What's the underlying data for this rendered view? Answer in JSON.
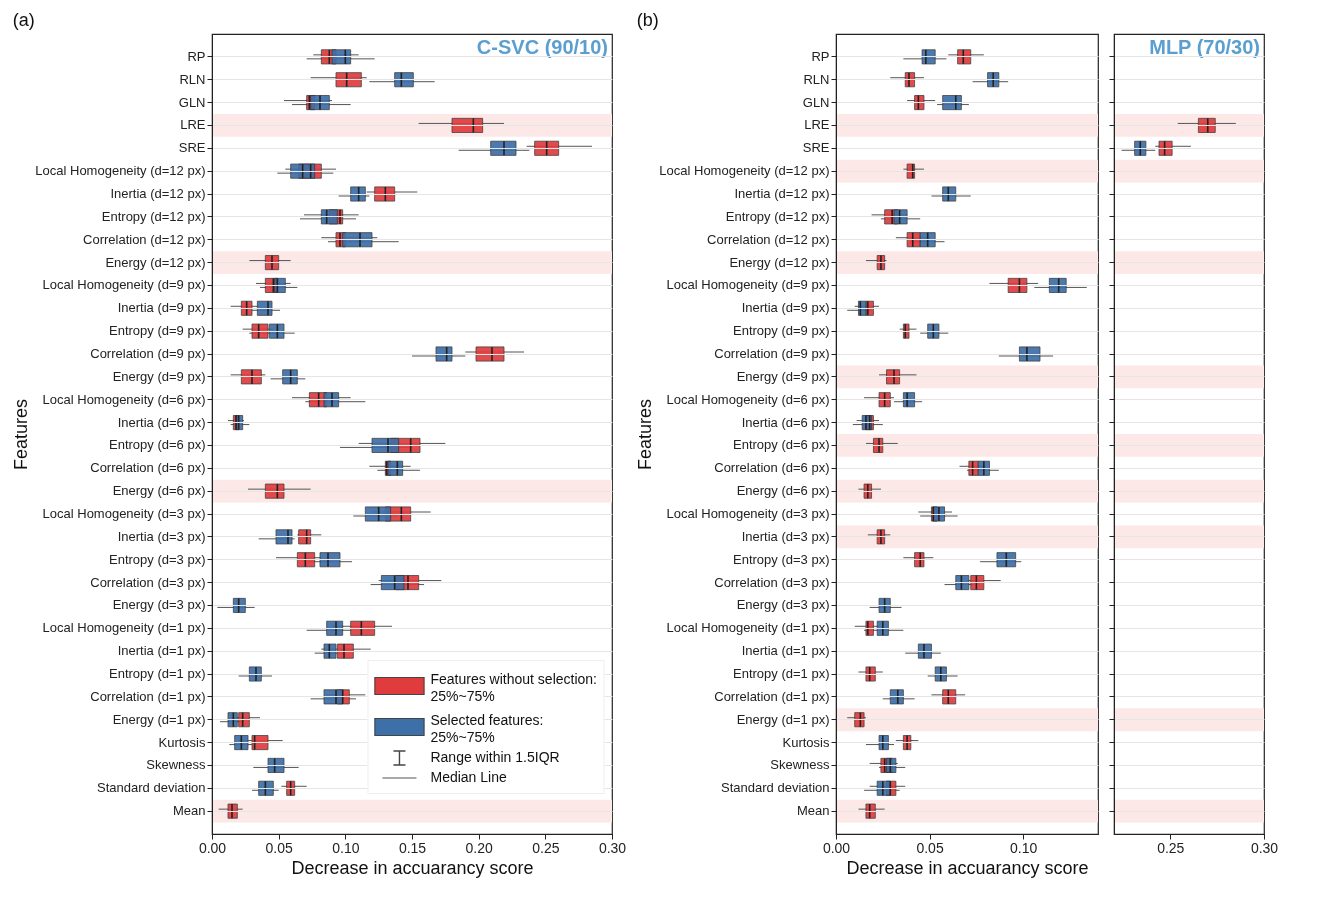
{
  "chart_data": [
    {
      "type": "box",
      "orientation": "horizontal",
      "title": "(a)",
      "xlabel": "Decrease in accuarancy score",
      "ylabel": "Features",
      "grid": "y",
      "legend": "bottom right",
      "categories": [
        "RP",
        "RLN",
        "GLN",
        "LRE",
        "SRE",
        "Local Homogeneity (d=12 px)",
        "Inertia (d=12 px)",
        "Entropy (d=12 px)",
        "Correlation (d=12 px)",
        "Energy (d=12 px)",
        "Local Homogeneity (d=9 px)",
        "Inertia (d=9 px)",
        "Entropy (d=9 px)",
        "Correlation (d=9 px)",
        "Energy (d=9 px)",
        "Local Homogeneity (d=6 px)",
        "Inertia (d=6 px)",
        "Entropy (d=6 px)",
        "Correlation (d=6 px)",
        "Energy (d=6 px)",
        "Local Homogeneity (d=3 px)",
        "Inertia (d=3 px)",
        "Entropy (d=3 px)",
        "Correlation (d=3 px)",
        "Energy (d=3 px)",
        "Local Homogeneity (d=1 px)",
        "Inertia (d=1 px)",
        "Entropy (d=1 px)",
        "Correlation (d=1 px)",
        "Energy (d=1 px)",
        "Kurtosis",
        "Skewness",
        "Standard deviation",
        "Mean"
      ],
      "xlim": [
        0,
        0.3
      ],
      "xticks": [
        {
          "value": 0,
          "label": "0.00"
        },
        {
          "value": 0.05,
          "label": "0.05"
        },
        {
          "value": 0.1,
          "label": "0.10"
        },
        {
          "value": 0.15,
          "label": "0.15"
        },
        {
          "value": 0.2,
          "label": "0.20"
        },
        {
          "value": 0.25,
          "label": "0.25"
        },
        {
          "value": 0.3,
          "label": "0.30"
        }
      ],
      "series": [
        {
          "name": "Features without selection:",
          "color": "#e03c3e",
          "boxes": [
            {
              "low": 0.076,
              "q1": 0.082,
              "median": 0.088,
              "q3": 0.093,
              "high": 0.11
            },
            {
              "low": 0.074,
              "q1": 0.093,
              "median": 0.101,
              "q3": 0.112,
              "high": 0.116
            },
            {
              "low": 0.054,
              "q1": 0.071,
              "median": 0.073,
              "q3": 0.077,
              "high": 0.09
            },
            {
              "low": 0.155,
              "q1": 0.18,
              "median": 0.196,
              "q3": 0.203,
              "high": 0.219
            },
            {
              "low": 0.236,
              "q1": 0.242,
              "median": 0.251,
              "q3": 0.26,
              "high": 0.285
            },
            {
              "low": 0.055,
              "q1": 0.065,
              "median": 0.074,
              "q3": 0.082,
              "high": 0.093
            },
            {
              "low": 0.116,
              "q1": 0.122,
              "median": 0.13,
              "q3": 0.137,
              "high": 0.154
            },
            {
              "low": 0.069,
              "q1": 0.088,
              "median": 0.096,
              "q3": 0.098,
              "high": 0.11
            },
            {
              "low": 0.082,
              "q1": 0.093,
              "median": 0.096,
              "q3": 0.1,
              "high": 0.124
            },
            {
              "low": 0.028,
              "q1": 0.04,
              "median": 0.045,
              "q3": 0.05,
              "high": 0.059
            },
            {
              "low": 0.033,
              "q1": 0.04,
              "median": 0.046,
              "q3": 0.049,
              "high": 0.059
            },
            {
              "low": 0.014,
              "q1": 0.022,
              "median": 0.026,
              "q3": 0.03,
              "high": 0.035
            },
            {
              "low": 0.023,
              "q1": 0.03,
              "median": 0.035,
              "q3": 0.042,
              "high": 0.046
            },
            {
              "low": 0.19,
              "q1": 0.198,
              "median": 0.21,
              "q3": 0.219,
              "high": 0.234
            },
            {
              "low": 0.014,
              "q1": 0.022,
              "median": 0.03,
              "q3": 0.037,
              "high": 0.04
            },
            {
              "low": 0.06,
              "q1": 0.073,
              "median": 0.08,
              "q3": 0.086,
              "high": 0.104
            },
            {
              "low": 0.012,
              "q1": 0.016,
              "median": 0.018,
              "q3": 0.02,
              "high": 0.024
            },
            {
              "low": 0.11,
              "q1": 0.134,
              "median": 0.149,
              "q3": 0.156,
              "high": 0.175
            },
            {
              "low": 0.118,
              "q1": 0.13,
              "median": 0.131,
              "q3": 0.134,
              "high": 0.149
            },
            {
              "low": 0.027,
              "q1": 0.04,
              "median": 0.049,
              "q3": 0.054,
              "high": 0.074
            },
            {
              "low": 0.12,
              "q1": 0.13,
              "median": 0.142,
              "q3": 0.149,
              "high": 0.164
            },
            {
              "low": 0.064,
              "q1": 0.065,
              "median": 0.071,
              "q3": 0.074,
              "high": 0.082
            },
            {
              "low": 0.048,
              "q1": 0.064,
              "median": 0.07,
              "q3": 0.077,
              "high": 0.082
            },
            {
              "low": 0.125,
              "q1": 0.138,
              "median": 0.147,
              "q3": 0.155,
              "high": 0.172
            },
            null,
            {
              "low": 0.09,
              "q1": 0.104,
              "median": 0.112,
              "q3": 0.122,
              "high": 0.135
            },
            {
              "low": 0.082,
              "q1": 0.094,
              "median": 0.099,
              "q3": 0.106,
              "high": 0.119
            },
            null,
            {
              "low": 0.085,
              "q1": 0.094,
              "median": 0.098,
              "q3": 0.103,
              "high": 0.115
            },
            {
              "low": 0.014,
              "q1": 0.02,
              "median": 0.023,
              "q3": 0.028,
              "high": 0.036
            },
            {
              "low": 0.02,
              "q1": 0.03,
              "median": 0.032,
              "q3": 0.042,
              "high": 0.053
            },
            null,
            {
              "low": 0.052,
              "q1": 0.056,
              "median": 0.059,
              "q3": 0.062,
              "high": 0.071
            },
            {
              "low": 0.005,
              "q1": 0.012,
              "median": 0.015,
              "q3": 0.019,
              "high": 0.023
            }
          ]
        },
        {
          "name": "Selected features:",
          "color": "#3d6fa8",
          "boxes": [
            {
              "low": 0.071,
              "q1": 0.09,
              "median": 0.1,
              "q3": 0.104,
              "high": 0.122
            },
            {
              "low": 0.118,
              "q1": 0.137,
              "median": 0.142,
              "q3": 0.151,
              "high": 0.167
            },
            {
              "low": 0.06,
              "q1": 0.074,
              "median": 0.081,
              "q3": 0.088,
              "high": 0.104
            },
            null,
            {
              "low": 0.185,
              "q1": 0.209,
              "median": 0.219,
              "q3": 0.228,
              "high": 0.238
            },
            {
              "low": 0.049,
              "q1": 0.059,
              "median": 0.068,
              "q3": 0.077,
              "high": 0.091
            },
            {
              "low": 0.095,
              "q1": 0.104,
              "median": 0.11,
              "q3": 0.115,
              "high": 0.118
            },
            {
              "low": 0.066,
              "q1": 0.082,
              "median": 0.086,
              "q3": 0.094,
              "high": 0.108
            },
            {
              "low": 0.087,
              "q1": 0.098,
              "median": 0.111,
              "q3": 0.12,
              "high": 0.14
            },
            null,
            {
              "low": 0.036,
              "q1": 0.047,
              "median": 0.049,
              "q3": 0.055,
              "high": 0.064
            },
            {
              "low": 0.03,
              "q1": 0.034,
              "median": 0.042,
              "q3": 0.045,
              "high": 0.051
            },
            {
              "low": 0.028,
              "q1": 0.043,
              "median": 0.049,
              "q3": 0.054,
              "high": 0.062
            },
            {
              "low": 0.15,
              "q1": 0.168,
              "median": 0.176,
              "q3": 0.18,
              "high": 0.19
            },
            {
              "low": 0.044,
              "q1": 0.053,
              "median": 0.059,
              "q3": 0.064,
              "high": 0.07
            },
            {
              "low": 0.07,
              "q1": 0.084,
              "median": 0.09,
              "q3": 0.095,
              "high": 0.115
            },
            {
              "low": 0.014,
              "q1": 0.018,
              "median": 0.02,
              "q3": 0.023,
              "high": 0.028
            },
            {
              "low": 0.096,
              "q1": 0.12,
              "median": 0.132,
              "q3": 0.14,
              "high": 0.15
            },
            {
              "low": 0.124,
              "q1": 0.132,
              "median": 0.139,
              "q3": 0.143,
              "high": 0.156
            },
            null,
            {
              "low": 0.106,
              "q1": 0.115,
              "median": 0.125,
              "q3": 0.134,
              "high": 0.14
            },
            {
              "low": 0.035,
              "q1": 0.048,
              "median": 0.057,
              "q3": 0.06,
              "high": 0.062
            },
            {
              "low": 0.072,
              "q1": 0.081,
              "median": 0.087,
              "q3": 0.096,
              "high": 0.105
            },
            {
              "low": 0.119,
              "q1": 0.127,
              "median": 0.137,
              "q3": 0.144,
              "high": 0.159
            },
            {
              "low": 0.004,
              "q1": 0.016,
              "median": 0.02,
              "q3": 0.025,
              "high": 0.032
            },
            {
              "low": 0.071,
              "q1": 0.086,
              "median": 0.093,
              "q3": 0.098,
              "high": 0.105
            },
            {
              "low": 0.077,
              "q1": 0.084,
              "median": 0.088,
              "q3": 0.093,
              "high": 0.1
            },
            {
              "low": 0.02,
              "q1": 0.028,
              "median": 0.033,
              "q3": 0.037,
              "high": 0.045
            },
            {
              "low": 0.074,
              "q1": 0.084,
              "median": 0.093,
              "q3": 0.098,
              "high": 0.108
            },
            {
              "low": 0.006,
              "q1": 0.012,
              "median": 0.016,
              "q3": 0.019,
              "high": 0.024
            },
            {
              "low": 0.013,
              "q1": 0.017,
              "median": 0.022,
              "q3": 0.027,
              "high": 0.03
            },
            {
              "low": 0.031,
              "q1": 0.042,
              "median": 0.047,
              "q3": 0.054,
              "high": 0.065
            },
            {
              "low": 0.03,
              "q1": 0.035,
              "median": 0.04,
              "q3": 0.046,
              "high": 0.05
            },
            null
          ]
        }
      ],
      "bands": [
        {
          "axis": "y",
          "from": "LRE",
          "to": "LRE",
          "color": "#fde8e8"
        },
        {
          "axis": "y",
          "from": "Energy (d=12 px)",
          "to": "Energy (d=12 px)",
          "color": "#fde8e8"
        },
        {
          "axis": "y",
          "from": "Energy (d=6 px)",
          "to": "Energy (d=6 px)",
          "color": "#fde8e8"
        },
        {
          "axis": "y",
          "from": "Mean",
          "to": "Mean",
          "color": "#fde8e8"
        }
      ],
      "annotations": [
        "C-SVC (90/10)",
        "25%~75%",
        "25%~75%",
        "Range within 1.5IQR",
        "Median Line"
      ]
    },
    {
      "type": "box",
      "orientation": "horizontal",
      "title": "(b)",
      "xlabel": "Decrease in accuarancy score",
      "ylabel": "Features",
      "grid": "y",
      "categories": [
        "RP",
        "RLN",
        "GLN",
        "LRE",
        "SRE",
        "Local Homogeneity (d=12 px)",
        "Inertia (d=12 px)",
        "Entropy (d=12 px)",
        "Correlation (d=12 px)",
        "Energy (d=12 px)",
        "Local Homogeneity (d=9 px)",
        "Inertia (d=9 px)",
        "Entropy (d=9 px)",
        "Correlation (d=9 px)",
        "Energy (d=9 px)",
        "Local Homogeneity (d=6 px)",
        "Inertia (d=6 px)",
        "Entropy (d=6 px)",
        "Correlation (d=6 px)",
        "Energy (d=6 px)",
        "Local Homogeneity (d=3 px)",
        "Inertia (d=3 px)",
        "Entropy (d=3 px)",
        "Correlation (d=3 px)",
        "Energy (d=3 px)",
        "Local Homogeneity (d=1 px)",
        "Inertia (d=1 px)",
        "Entropy (d=1 px)",
        "Correlation (d=1 px)",
        "Energy (d=1 px)",
        "Kurtosis",
        "Skewness",
        "Standard deviation",
        "Mean"
      ],
      "xlim": [
        0,
        0.14
      ],
      "xticks": [
        {
          "value": 0,
          "label": "0.00"
        },
        {
          "value": 0.05,
          "label": "0.05"
        },
        {
          "value": 0.1,
          "label": "0.10"
        }
      ],
      "series": [
        {
          "color": "#e03c3e",
          "boxes": [
            {
              "low": 0.06,
              "q1": 0.065,
              "median": 0.068,
              "q3": 0.072,
              "high": 0.079
            },
            {
              "low": 0.029,
              "q1": 0.037,
              "median": 0.039,
              "q3": 0.042,
              "high": 0.047
            },
            {
              "low": 0.038,
              "q1": 0.042,
              "median": 0.044,
              "q3": 0.047,
              "high": 0.053
            },
            null,
            null,
            {
              "low": 0.036,
              "q1": 0.038,
              "median": 0.041,
              "q3": 0.042,
              "high": 0.047
            },
            null,
            {
              "low": 0.019,
              "q1": 0.026,
              "median": 0.03,
              "q3": 0.033,
              "high": 0.038
            },
            {
              "low": 0.032,
              "q1": 0.038,
              "median": 0.041,
              "q3": 0.045,
              "high": 0.05
            },
            {
              "low": 0.016,
              "q1": 0.022,
              "median": 0.024,
              "q3": 0.026,
              "high": 0.027
            },
            {
              "low": 0.082,
              "q1": 0.092,
              "median": 0.098,
              "q3": 0.102,
              "high": 0.108
            },
            {
              "low": 0.01,
              "q1": 0.016,
              "median": 0.017,
              "q3": 0.02,
              "high": 0.023
            },
            {
              "low": 0.034,
              "q1": 0.036,
              "median": 0.037,
              "q3": 0.039,
              "high": 0.043
            },
            null,
            {
              "low": 0.023,
              "q1": 0.027,
              "median": 0.031,
              "q3": 0.034,
              "high": 0.043
            },
            {
              "low": 0.015,
              "q1": 0.023,
              "median": 0.026,
              "q3": 0.029,
              "high": 0.031
            },
            {
              "low": 0.011,
              "q1": 0.016,
              "median": 0.018,
              "q3": 0.02,
              "high": 0.023
            },
            {
              "low": 0.016,
              "q1": 0.02,
              "median": 0.023,
              "q3": 0.025,
              "high": 0.033
            },
            {
              "low": 0.066,
              "q1": 0.071,
              "median": 0.073,
              "q3": 0.076,
              "high": 0.08
            },
            {
              "low": 0.012,
              "q1": 0.015,
              "median": 0.017,
              "q3": 0.019,
              "high": 0.024
            },
            {
              "low": 0.044,
              "q1": 0.051,
              "median": 0.052,
              "q3": 0.054,
              "high": 0.062
            },
            {
              "low": 0.017,
              "q1": 0.022,
              "median": 0.024,
              "q3": 0.026,
              "high": 0.029
            },
            {
              "low": 0.036,
              "q1": 0.042,
              "median": 0.045,
              "q3": 0.047,
              "high": 0.052
            },
            {
              "low": 0.07,
              "q1": 0.072,
              "median": 0.075,
              "q3": 0.079,
              "high": 0.088
            },
            null,
            {
              "low": 0.01,
              "q1": 0.016,
              "median": 0.017,
              "q3": 0.02,
              "high": 0.023
            },
            null,
            {
              "low": 0.012,
              "q1": 0.016,
              "median": 0.018,
              "q3": 0.021,
              "high": 0.025
            },
            {
              "low": 0.051,
              "q1": 0.057,
              "median": 0.06,
              "q3": 0.064,
              "high": 0.069
            },
            {
              "low": 0.006,
              "q1": 0.01,
              "median": 0.013,
              "q3": 0.015,
              "high": 0.016
            },
            {
              "low": 0.032,
              "q1": 0.036,
              "median": 0.038,
              "q3": 0.04,
              "high": 0.044
            },
            {
              "low": 0.018,
              "q1": 0.024,
              "median": 0.026,
              "q3": 0.03,
              "high": 0.033
            },
            {
              "low": 0.018,
              "q1": 0.027,
              "median": 0.029,
              "q3": 0.032,
              "high": 0.037
            },
            {
              "low": 0.012,
              "q1": 0.016,
              "median": 0.018,
              "q3": 0.021,
              "high": 0.026
            }
          ]
        },
        {
          "color": "#3d6fa8",
          "boxes": [
            {
              "low": 0.036,
              "q1": 0.046,
              "median": 0.048,
              "q3": 0.053,
              "high": 0.059
            },
            {
              "low": 0.073,
              "q1": 0.081,
              "median": 0.084,
              "q3": 0.087,
              "high": 0.092
            },
            {
              "low": 0.054,
              "q1": 0.057,
              "median": 0.064,
              "q3": 0.067,
              "high": 0.071
            },
            null,
            null,
            null,
            {
              "low": 0.051,
              "q1": 0.057,
              "median": 0.06,
              "q3": 0.064,
              "high": 0.072
            },
            {
              "low": 0.024,
              "q1": 0.031,
              "median": 0.034,
              "q3": 0.038,
              "high": 0.045
            },
            {
              "low": 0.04,
              "q1": 0.045,
              "median": 0.049,
              "q3": 0.053,
              "high": 0.058
            },
            null,
            {
              "low": 0.106,
              "q1": 0.114,
              "median": 0.119,
              "q3": 0.123,
              "high": 0.134
            },
            {
              "low": 0.006,
              "q1": 0.012,
              "median": 0.013,
              "q3": 0.016,
              "high": 0.019
            },
            {
              "low": 0.045,
              "q1": 0.049,
              "median": 0.052,
              "q3": 0.055,
              "high": 0.06
            },
            {
              "low": 0.087,
              "q1": 0.098,
              "median": 0.102,
              "q3": 0.109,
              "high": 0.116
            },
            null,
            {
              "low": 0.031,
              "q1": 0.036,
              "median": 0.038,
              "q3": 0.042,
              "high": 0.046
            },
            {
              "low": 0.009,
              "q1": 0.014,
              "median": 0.016,
              "q3": 0.019,
              "high": 0.025
            },
            null,
            {
              "low": 0.07,
              "q1": 0.076,
              "median": 0.079,
              "q3": 0.082,
              "high": 0.087
            },
            null,
            {
              "low": 0.045,
              "q1": 0.052,
              "median": 0.055,
              "q3": 0.058,
              "high": 0.065
            },
            null,
            {
              "low": 0.077,
              "q1": 0.086,
              "median": 0.091,
              "q3": 0.096,
              "high": 0.099
            },
            {
              "low": 0.058,
              "q1": 0.064,
              "median": 0.067,
              "q3": 0.071,
              "high": 0.074
            },
            {
              "low": 0.018,
              "q1": 0.023,
              "median": 0.026,
              "q3": 0.029,
              "high": 0.035
            },
            {
              "low": 0.015,
              "q1": 0.022,
              "median": 0.025,
              "q3": 0.028,
              "high": 0.036
            },
            {
              "low": 0.037,
              "q1": 0.044,
              "median": 0.047,
              "q3": 0.051,
              "high": 0.056
            },
            {
              "low": 0.049,
              "q1": 0.053,
              "median": 0.056,
              "q3": 0.059,
              "high": 0.065
            },
            {
              "low": 0.025,
              "q1": 0.029,
              "median": 0.033,
              "q3": 0.036,
              "high": 0.042
            },
            null,
            {
              "low": 0.016,
              "q1": 0.023,
              "median": 0.025,
              "q3": 0.028,
              "high": 0.031
            },
            {
              "low": 0.023,
              "q1": 0.027,
              "median": 0.029,
              "q3": 0.032,
              "high": 0.037
            },
            {
              "low": 0.015,
              "q1": 0.022,
              "median": 0.025,
              "q3": 0.029,
              "high": 0.034
            },
            null
          ]
        }
      ],
      "bands": [
        {
          "axis": "y",
          "from": "LRE",
          "to": "LRE",
          "color": "#fde8e8"
        },
        {
          "axis": "y",
          "from": "Local Homogeneity (d=12 px)",
          "to": "Local Homogeneity (d=12 px)",
          "color": "#fde8e8"
        },
        {
          "axis": "y",
          "from": "Energy (d=12 px)",
          "to": "Energy (d=12 px)",
          "color": "#fde8e8"
        },
        {
          "axis": "y",
          "from": "Energy (d=9 px)",
          "to": "Energy (d=9 px)",
          "color": "#fde8e8"
        },
        {
          "axis": "y",
          "from": "Entropy (d=6 px)",
          "to": "Entropy (d=6 px)",
          "color": "#fde8e8"
        },
        {
          "axis": "y",
          "from": "Energy (d=6 px)",
          "to": "Energy (d=6 px)",
          "color": "#fde8e8"
        },
        {
          "axis": "y",
          "from": "Inertia (d=3 px)",
          "to": "Inertia (d=3 px)",
          "color": "#fde8e8"
        },
        {
          "axis": "y",
          "from": "Energy (d=1 px)",
          "to": "Energy (d=1 px)",
          "color": "#fde8e8"
        },
        {
          "axis": "y",
          "from": "Mean",
          "to": "Mean",
          "color": "#fde8e8"
        }
      ]
    },
    {
      "type": "box",
      "orientation": "horizontal",
      "grid": "y",
      "tick_labels": "x",
      "categories": [
        "RP",
        "RLN",
        "GLN",
        "LRE",
        "SRE",
        "Local Homogeneity (d=12 px)",
        "Inertia (d=12 px)",
        "Entropy (d=12 px)",
        "Correlation (d=12 px)",
        "Energy (d=12 px)",
        "Local Homogeneity (d=9 px)",
        "Inertia (d=9 px)",
        "Entropy (d=9 px)",
        "Correlation (d=9 px)",
        "Energy (d=9 px)",
        "Local Homogeneity (d=6 px)",
        "Inertia (d=6 px)",
        "Entropy (d=6 px)",
        "Correlation (d=6 px)",
        "Energy (d=6 px)",
        "Local Homogeneity (d=3 px)",
        "Inertia (d=3 px)",
        "Entropy (d=3 px)",
        "Correlation (d=3 px)",
        "Energy (d=3 px)",
        "Local Homogeneity (d=1 px)",
        "Inertia (d=1 px)",
        "Entropy (d=1 px)",
        "Correlation (d=1 px)",
        "Energy (d=1 px)",
        "Kurtosis",
        "Skewness",
        "Standard deviation",
        "Mean"
      ],
      "xlim": [
        0.22,
        0.3
      ],
      "xticks": [
        {
          "value": 0.25,
          "label": "0.25"
        },
        {
          "value": 0.3,
          "label": "0.30"
        }
      ],
      "series": [
        {
          "color": "#e03c3e",
          "boxes": [
            null,
            null,
            null,
            {
              "low": 0.254,
              "q1": 0.265,
              "median": 0.27,
              "q3": 0.274,
              "high": 0.285
            },
            {
              "low": 0.242,
              "q1": 0.244,
              "median": 0.247,
              "q3": 0.251,
              "high": 0.261
            },
            null,
            null,
            null,
            null,
            null,
            null,
            null,
            null,
            null,
            null,
            null,
            null,
            null,
            null,
            null,
            null,
            null,
            null,
            null,
            null,
            null,
            null,
            null,
            null,
            null,
            null,
            null,
            null,
            null
          ]
        },
        {
          "color": "#3d6fa8",
          "boxes": [
            null,
            null,
            null,
            null,
            {
              "low": 0.224,
              "q1": 0.231,
              "median": 0.234,
              "q3": 0.237,
              "high": 0.242
            },
            null,
            null,
            null,
            null,
            null,
            null,
            null,
            null,
            null,
            null,
            null,
            null,
            null,
            null,
            null,
            null,
            null,
            null,
            null,
            null,
            null,
            null,
            null,
            null,
            null,
            null,
            null,
            null,
            null
          ]
        }
      ],
      "bands": [
        {
          "axis": "y",
          "from": "LRE",
          "to": "LRE",
          "color": "#fde8e8"
        },
        {
          "axis": "y",
          "from": "Local Homogeneity (d=12 px)",
          "to": "Local Homogeneity (d=12 px)",
          "color": "#fde8e8"
        },
        {
          "axis": "y",
          "from": "Energy (d=12 px)",
          "to": "Energy (d=12 px)",
          "color": "#fde8e8"
        },
        {
          "axis": "y",
          "from": "Energy (d=9 px)",
          "to": "Energy (d=9 px)",
          "color": "#fde8e8"
        },
        {
          "axis": "y",
          "from": "Entropy (d=6 px)",
          "to": "Entropy (d=6 px)",
          "color": "#fde8e8"
        },
        {
          "axis": "y",
          "from": "Energy (d=6 px)",
          "to": "Energy (d=6 px)",
          "color": "#fde8e8"
        },
        {
          "axis": "y",
          "from": "Inertia (d=3 px)",
          "to": "Inertia (d=3 px)",
          "color": "#fde8e8"
        },
        {
          "axis": "y",
          "from": "Energy (d=1 px)",
          "to": "Energy (d=1 px)",
          "color": "#fde8e8"
        },
        {
          "axis": "y",
          "from": "Mean",
          "to": "Mean",
          "color": "#fde8e8"
        }
      ],
      "annotations": [
        "MLP (70/30)"
      ]
    }
  ]
}
